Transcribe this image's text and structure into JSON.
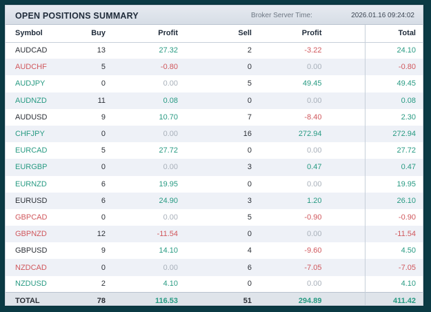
{
  "header": {
    "title": "OPEN POSITIONS SUMMARY",
    "server_label": "Broker Server Time:",
    "server_time": "2026.01.16 09:24:02"
  },
  "columns": {
    "symbol": "Symbol",
    "buy": "Buy",
    "buy_profit": "Profit",
    "sell": "Sell",
    "sell_profit": "Profit",
    "total": "Total"
  },
  "colors": {
    "positive": "#279a82",
    "negative": "#d0575c",
    "zero": "#a8b0ba",
    "background": "#0b3a44"
  },
  "rows": [
    {
      "symbol": "AUDCAD",
      "buy": "13",
      "buy_profit": "27.32",
      "sell": "2",
      "sell_profit": "-3.22",
      "total": "24.10"
    },
    {
      "symbol": "AUDCHF",
      "buy": "5",
      "buy_profit": "-0.80",
      "sell": "0",
      "sell_profit": "0.00",
      "total": "-0.80"
    },
    {
      "symbol": "AUDJPY",
      "buy": "0",
      "buy_profit": "0.00",
      "sell": "5",
      "sell_profit": "49.45",
      "total": "49.45"
    },
    {
      "symbol": "AUDNZD",
      "buy": "11",
      "buy_profit": "0.08",
      "sell": "0",
      "sell_profit": "0.00",
      "total": "0.08"
    },
    {
      "symbol": "AUDUSD",
      "buy": "9",
      "buy_profit": "10.70",
      "sell": "7",
      "sell_profit": "-8.40",
      "total": "2.30"
    },
    {
      "symbol": "CHFJPY",
      "buy": "0",
      "buy_profit": "0.00",
      "sell": "16",
      "sell_profit": "272.94",
      "total": "272.94"
    },
    {
      "symbol": "EURCAD",
      "buy": "5",
      "buy_profit": "27.72",
      "sell": "0",
      "sell_profit": "0.00",
      "total": "27.72"
    },
    {
      "symbol": "EURGBP",
      "buy": "0",
      "buy_profit": "0.00",
      "sell": "3",
      "sell_profit": "0.47",
      "total": "0.47"
    },
    {
      "symbol": "EURNZD",
      "buy": "6",
      "buy_profit": "19.95",
      "sell": "0",
      "sell_profit": "0.00",
      "total": "19.95"
    },
    {
      "symbol": "EURUSD",
      "buy": "6",
      "buy_profit": "24.90",
      "sell": "3",
      "sell_profit": "1.20",
      "total": "26.10"
    },
    {
      "symbol": "GBPCAD",
      "buy": "0",
      "buy_profit": "0.00",
      "sell": "5",
      "sell_profit": "-0.90",
      "total": "-0.90"
    },
    {
      "symbol": "GBPNZD",
      "buy": "12",
      "buy_profit": "-11.54",
      "sell": "0",
      "sell_profit": "0.00",
      "total": "-11.54"
    },
    {
      "symbol": "GBPUSD",
      "buy": "9",
      "buy_profit": "14.10",
      "sell": "4",
      "sell_profit": "-9.60",
      "total": "4.50"
    },
    {
      "symbol": "NZDCAD",
      "buy": "0",
      "buy_profit": "0.00",
      "sell": "6",
      "sell_profit": "-7.05",
      "total": "-7.05"
    },
    {
      "symbol": "NZDUSD",
      "buy": "2",
      "buy_profit": "4.10",
      "sell": "0",
      "sell_profit": "0.00",
      "total": "4.10"
    }
  ],
  "totals": {
    "label": "TOTAL",
    "buy": "78",
    "buy_profit": "116.53",
    "sell": "51",
    "sell_profit": "294.89",
    "total": "411.42"
  }
}
